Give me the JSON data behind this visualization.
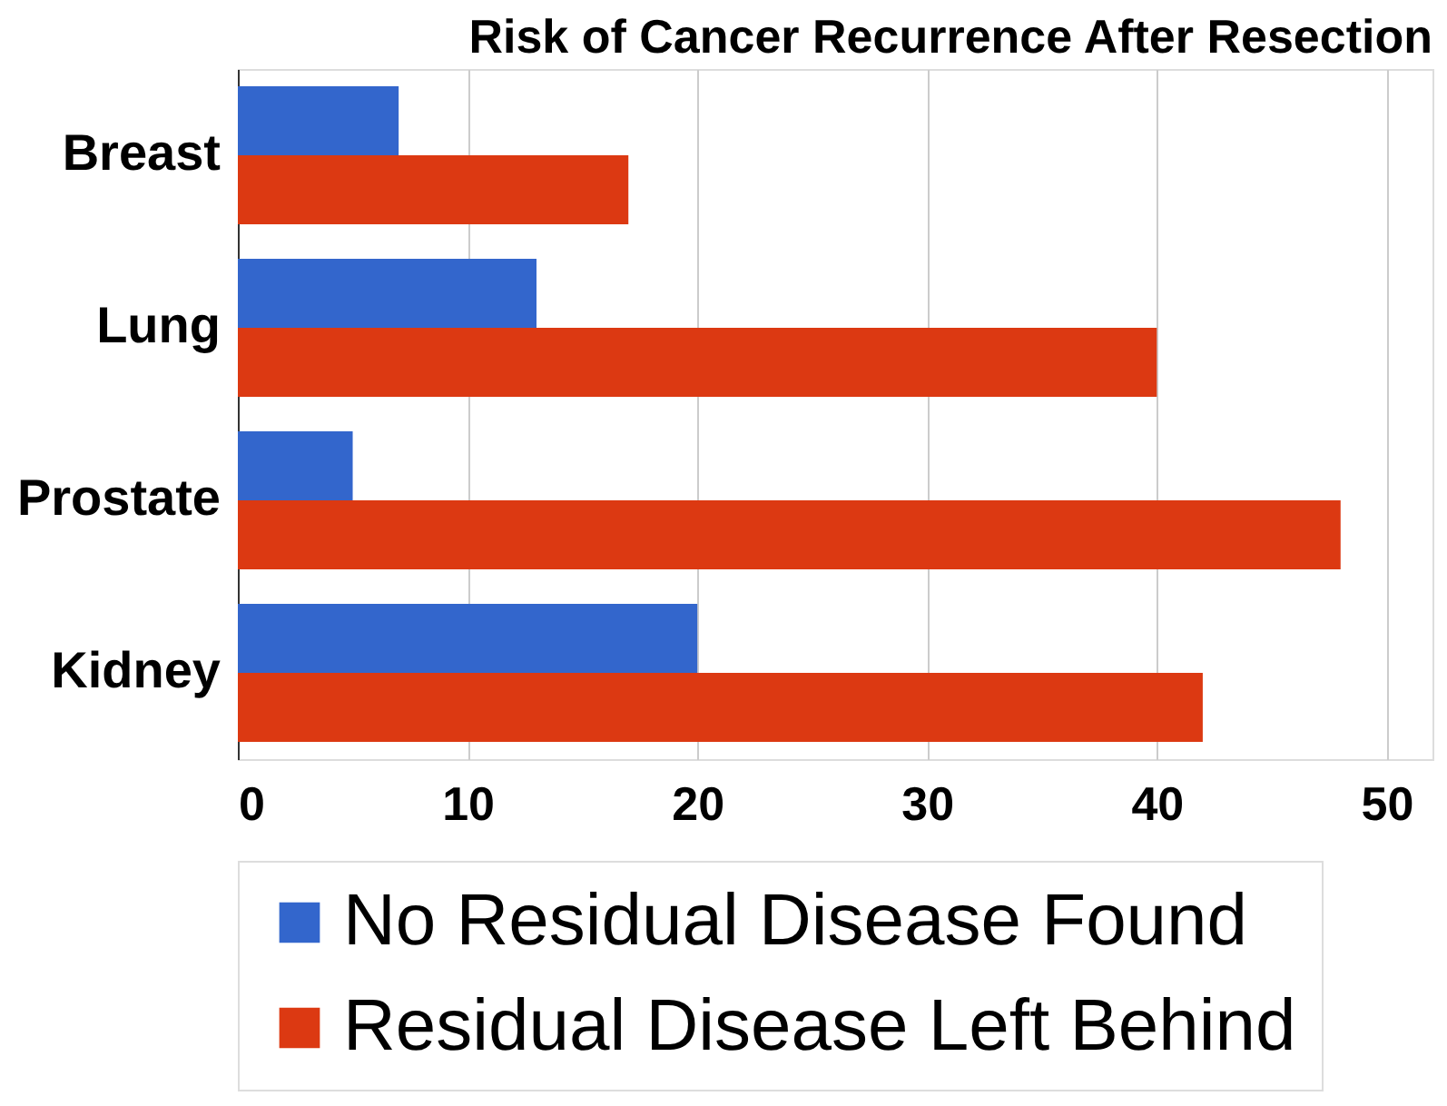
{
  "chart_data": {
    "type": "bar",
    "orientation": "horizontal",
    "title": "Risk of Cancer Recurrence After Resection",
    "categories": [
      "Breast",
      "Lung",
      "Prostate",
      "Kidney"
    ],
    "series": [
      {
        "name": "No Residual Disease Found",
        "color": "#3366cc",
        "values": [
          7,
          13,
          5,
          20
        ]
      },
      {
        "name": "Residual Disease Left Behind",
        "color": "#dc3912",
        "values": [
          17,
          40,
          48,
          42
        ]
      }
    ],
    "xlim": [
      0,
      52
    ],
    "xticks": [
      0,
      10,
      20,
      30,
      40,
      50
    ],
    "grid": "x",
    "legend": "bottom"
  }
}
